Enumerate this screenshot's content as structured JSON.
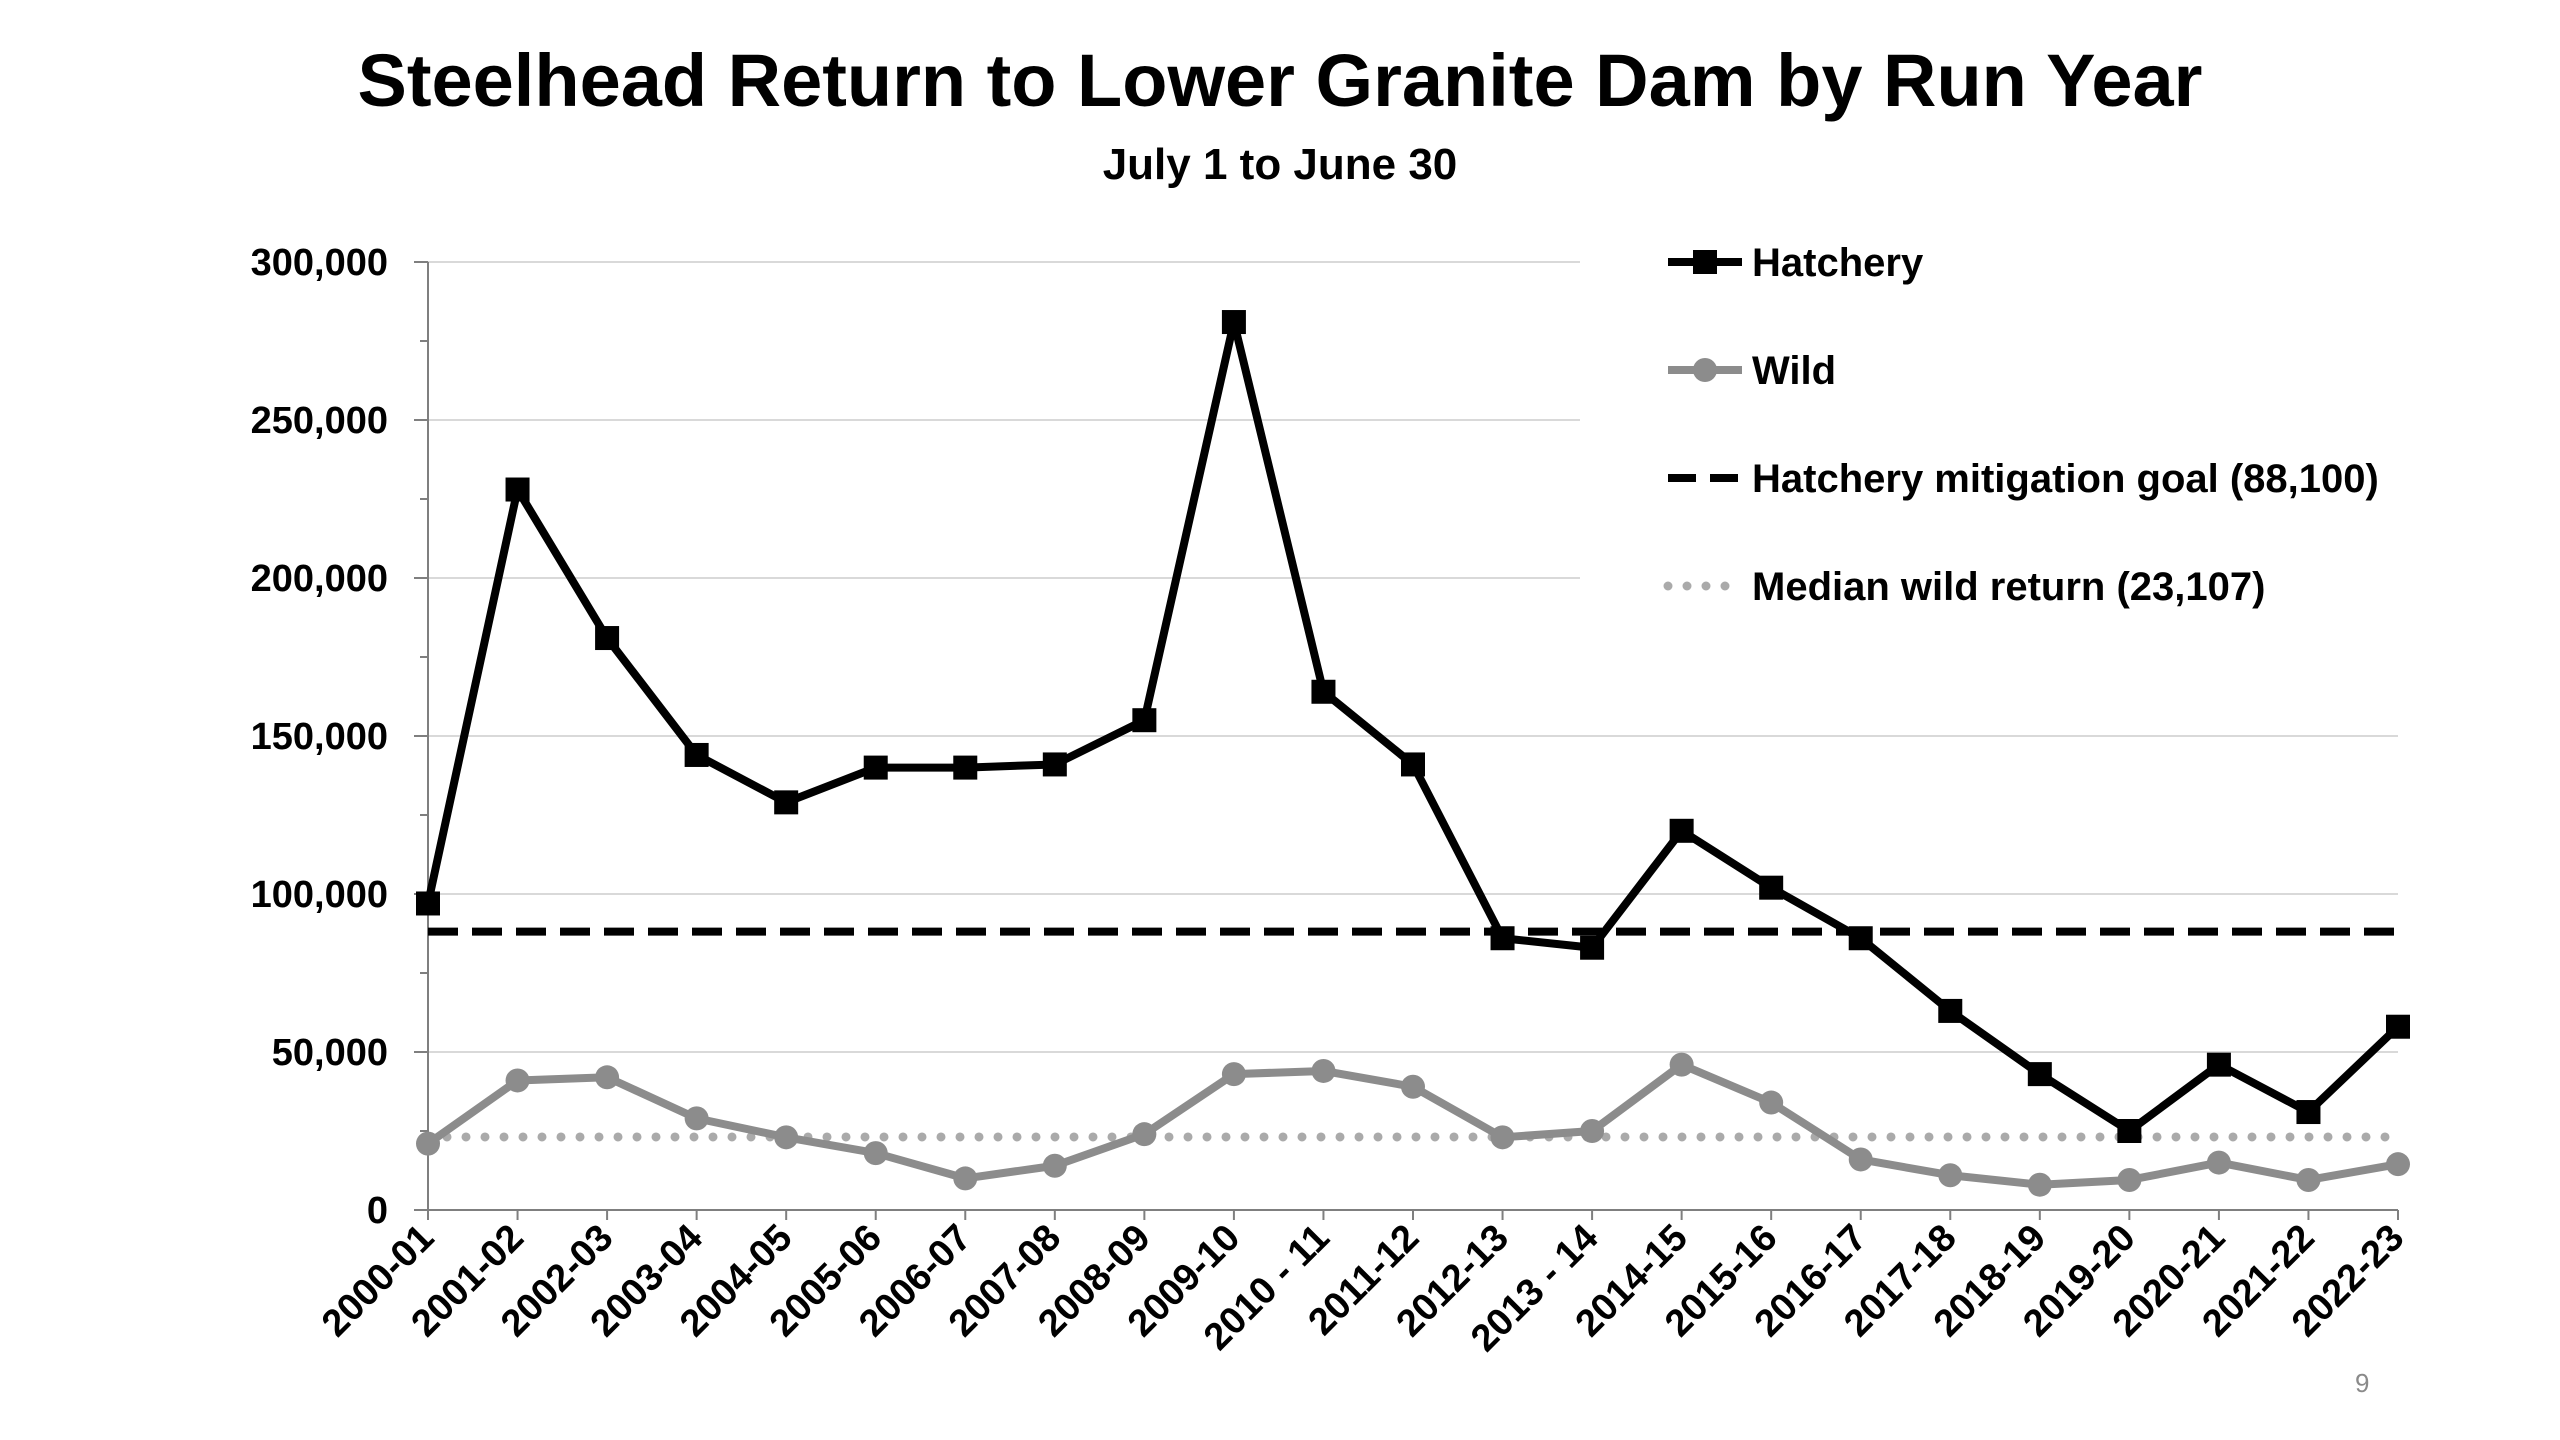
{
  "page_number": "9",
  "chart_data": {
    "type": "line",
    "title": "Steelhead Return to Lower Granite Dam by Run Year",
    "subtitle": "July 1 to June 30",
    "xlabel": "",
    "ylabel": "",
    "ylim": [
      0,
      300000
    ],
    "yticks": [
      0,
      50000,
      100000,
      150000,
      200000,
      250000,
      300000
    ],
    "ytick_labels": [
      "0",
      "50,000",
      "100,000",
      "150,000",
      "200,000",
      "250,000",
      "300,000"
    ],
    "grid": true,
    "legend_position": "top-right",
    "categories": [
      "2000-01",
      "2001-02",
      "2002-03",
      "2003-04",
      "2004-05",
      "2005-06",
      "2006-07",
      "2007-08",
      "2008-09",
      "2009-10",
      "2010 - 11",
      "2011-12",
      "2012-13",
      "2013 - 14",
      "2014-15",
      "2015-16",
      "2016-17",
      "2017-18",
      "2018-19",
      "2019-20",
      "2020-21",
      "2021-22",
      "2022-23"
    ],
    "series": [
      {
        "name": "Hatchery",
        "color": "#000000",
        "marker": "square",
        "values": [
          97000,
          228000,
          181000,
          144000,
          129000,
          140000,
          140000,
          141000,
          155000,
          281000,
          164000,
          141000,
          86000,
          83000,
          120000,
          102000,
          86000,
          63000,
          43000,
          25000,
          46000,
          31000,
          58000
        ]
      },
      {
        "name": "Wild",
        "color": "#8c8c8c",
        "marker": "circle",
        "values": [
          21000,
          41000,
          42000,
          29000,
          23000,
          18000,
          10000,
          14000,
          24000,
          43000,
          44000,
          39000,
          23000,
          25000,
          46000,
          34000,
          16000,
          11000,
          8000,
          9500,
          15000,
          9500,
          14500
        ]
      }
    ],
    "reference_lines": [
      {
        "name": "Hatchery mitigation goal (88,100)",
        "value": 88100,
        "style": "dashed",
        "color": "#000000"
      },
      {
        "name": "Median wild return (23,107)",
        "value": 23107,
        "style": "dotted",
        "color": "#aaaaaa"
      }
    ]
  }
}
